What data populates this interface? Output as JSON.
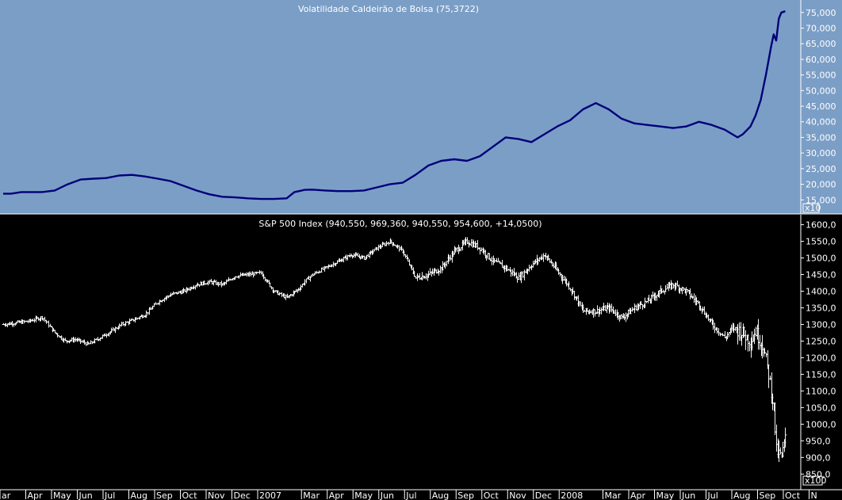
{
  "colors": {
    "top_bg": "#7b9ec6",
    "top_line": "#00007a",
    "bottom_bg": "#000000",
    "bars": "#f2f2f2",
    "axis_text_top": "#ffffff",
    "axis_text_bottom": "#ffffff"
  },
  "chart_data": [
    {
      "type": "line",
      "title": "Volatilidade Caldeirão de Bolsa (75,3722)",
      "scale_badge": "x10",
      "ylim": [
        10500,
        79000
      ],
      "yticks": [
        15000,
        20000,
        25000,
        30000,
        35000,
        40000,
        45000,
        50000,
        55000,
        60000,
        65000,
        70000,
        75000
      ],
      "ytick_labels": [
        "15,000",
        "20,000",
        "25,000",
        "30,000",
        "35,000",
        "40,000",
        "45,000",
        "50,000",
        "55,000",
        "60,000",
        "65,000",
        "70,000",
        "75,000"
      ],
      "series": [
        {
          "x": [
            0,
            0.3,
            0.7,
            1.0,
            1.5,
            2.0,
            2.5,
            3.0,
            3.5,
            4.0,
            4.5,
            5.0,
            5.5,
            6.0,
            6.5,
            7.0,
            7.5,
            8.0,
            8.5,
            9.0,
            9.5,
            10.0,
            10.5,
            11.0,
            11.3,
            11.7,
            12.0,
            12.5,
            13.0,
            13.5,
            14.0,
            14.5,
            15.0,
            15.5,
            16.0,
            16.5,
            17.0,
            17.5,
            18.0,
            18.5,
            19.0,
            19.5,
            20.0,
            20.5,
            21.0,
            21.5,
            22.0,
            22.5,
            23.0,
            23.5,
            24.0,
            24.5,
            25.0,
            25.5,
            26.0,
            26.5,
            27.0,
            27.5,
            28.0,
            28.3,
            28.5,
            28.7,
            29.0,
            29.2,
            29.4,
            29.6,
            29.8,
            29.9,
            30.0,
            30.1,
            30.2,
            30.35
          ],
          "y": [
            17000,
            17000,
            17500,
            17500,
            17500,
            18000,
            20000,
            21500,
            21800,
            22000,
            22800,
            23000,
            22500,
            21800,
            21000,
            19500,
            18000,
            16800,
            16000,
            15800,
            15500,
            15300,
            15300,
            15500,
            17500,
            18200,
            18300,
            18000,
            17800,
            17800,
            18000,
            19000,
            20000,
            20500,
            23000,
            26000,
            27500,
            28000,
            27500,
            29000,
            32000,
            35000,
            34500,
            33500,
            36000,
            38500,
            40500,
            44000,
            46000,
            44000,
            41000,
            39500,
            39000,
            38500,
            38000,
            38500,
            40000,
            39000,
            37500,
            36000,
            35000,
            36000,
            38500,
            42000,
            47000,
            55000,
            64000,
            68000,
            66000,
            73000,
            75000,
            75400
          ]
        }
      ]
    },
    {
      "type": "ohlc",
      "title": "S&P 500 Index (940,550, 969,360, 940,550, 954,600, +14,0500)",
      "scale_badge": "x100",
      "ylim": [
        803,
        1630
      ],
      "yticks": [
        850,
        900,
        950,
        1000,
        1050,
        1100,
        1150,
        1200,
        1250,
        1300,
        1350,
        1400,
        1450,
        1500,
        1550,
        1600
      ],
      "ytick_labels": [
        "850,0",
        "900,0",
        "950,0",
        "1000,0",
        "1050,0",
        "1100,0",
        "1150,0",
        "1200,0",
        "1250,0",
        "1300,0",
        "1350,0",
        "1400,0",
        "1450,0",
        "1500,0",
        "1550,0",
        "1600,0"
      ],
      "series": [
        {
          "name": "S&P 500 Index",
          "x": [
            0,
            1.0,
            1.5,
            2.0,
            2.4,
            2.8,
            3.3,
            3.8,
            4.2,
            4.6,
            5.0,
            5.5,
            6.0,
            6.5,
            7.0,
            7.5,
            8.0,
            8.5,
            9.0,
            9.5,
            10.0,
            10.5,
            11.0,
            11.5,
            11.7,
            12.0,
            12.5,
            13.0,
            13.5,
            14.0,
            14.5,
            15.0,
            15.5,
            16.0,
            16.5,
            17.0,
            17.5,
            18.0,
            18.5,
            19.0,
            19.5,
            20.0,
            20.5,
            21.0,
            21.5,
            22.0,
            22.5,
            23.0,
            23.5,
            24.0,
            24.5,
            25.0,
            25.5,
            26.0,
            26.5,
            27.0,
            27.5,
            28.0,
            28.3,
            28.6,
            29.0,
            29.2,
            29.5,
            29.7,
            29.9,
            30.0,
            30.2,
            30.35
          ],
          "close": [
            1300,
            1310,
            1322,
            1275,
            1250,
            1255,
            1240,
            1262,
            1280,
            1300,
            1312,
            1330,
            1368,
            1390,
            1400,
            1420,
            1428,
            1420,
            1445,
            1450,
            1455,
            1400,
            1380,
            1410,
            1430,
            1450,
            1470,
            1490,
            1510,
            1500,
            1530,
            1550,
            1520,
            1440,
            1450,
            1470,
            1520,
            1550,
            1530,
            1490,
            1470,
            1440,
            1480,
            1510,
            1460,
            1410,
            1340,
            1340,
            1350,
            1320,
            1350,
            1370,
            1400,
            1420,
            1400,
            1360,
            1300,
            1260,
            1290,
            1280,
            1250,
            1280,
            1230,
            1150,
            1050,
            920,
            900,
            954.6
          ]
        }
      ]
    },
    {
      "type": "axis",
      "x_labels": [
        "ar",
        "Apr",
        "May",
        "Jun",
        "Jul",
        "Aug",
        "Sep",
        "Oct",
        "Nov",
        "Dec",
        "2007",
        "Mar",
        "Apr",
        "May",
        "Jun",
        "Jul",
        "Aug",
        "Sep",
        "Oct",
        "Nov",
        "Dec",
        "2008",
        "Mar",
        "Apr",
        "May",
        "Jun",
        "Jul",
        "Aug",
        "Sep",
        "Oct",
        "N"
      ],
      "x_positions": [
        0,
        1,
        2,
        3,
        4,
        5,
        6,
        7,
        8,
        9,
        10,
        11.7,
        12.7,
        13.7,
        14.7,
        15.7,
        16.7,
        17.7,
        18.7,
        19.7,
        20.7,
        21.7,
        23.4,
        24.4,
        25.4,
        26.4,
        27.4,
        28.4,
        29.4,
        30.4,
        31.4
      ]
    }
  ]
}
